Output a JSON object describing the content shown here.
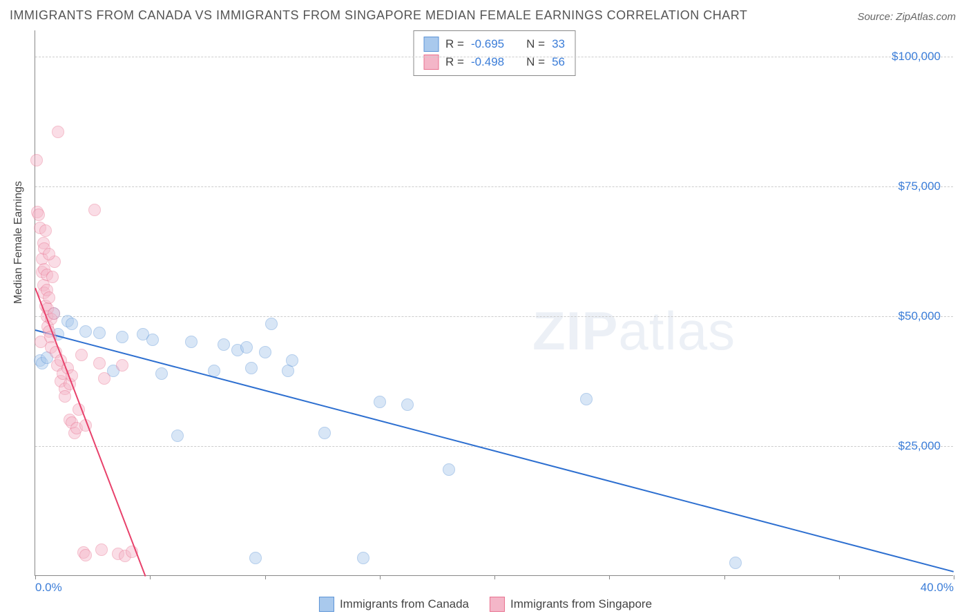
{
  "title": "IMMIGRANTS FROM CANADA VS IMMIGRANTS FROM SINGAPORE MEDIAN FEMALE EARNINGS CORRELATION CHART",
  "source_label": "Source: ZipAtlas.com",
  "y_axis_label": "Median Female Earnings",
  "watermark_bold": "ZIP",
  "watermark_rest": "atlas",
  "chart": {
    "type": "scatter",
    "xlim": [
      0,
      40
    ],
    "ylim": [
      0,
      105000
    ],
    "x_ticks": [
      0,
      5,
      10,
      15,
      20,
      25,
      30,
      35,
      40
    ],
    "x_tick_labels": {
      "0": "0.0%",
      "40": "40.0%"
    },
    "y_gridlines": [
      25000,
      50000,
      75000,
      100000
    ],
    "y_tick_labels": {
      "25000": "$25,000",
      "50000": "$50,000",
      "75000": "$75,000",
      "100000": "$100,000"
    },
    "grid_color": "#cccccc",
    "axis_color": "#888888",
    "tick_label_color": "#3b7dd8",
    "background_color": "#ffffff",
    "marker_radius": 9,
    "marker_opacity": 0.45,
    "series": [
      {
        "name": "Immigrants from Canada",
        "fill_color": "#a9c9ed",
        "stroke_color": "#5b93d6",
        "trend_color": "#2d6fd0",
        "r": -0.695,
        "n": 33,
        "trend": {
          "x1": 0,
          "y1": 47500,
          "x2": 40,
          "y2": 1000
        },
        "points": [
          [
            0.2,
            41500
          ],
          [
            0.3,
            41000
          ],
          [
            0.5,
            42000
          ],
          [
            0.8,
            50500
          ],
          [
            1.0,
            46500
          ],
          [
            1.4,
            49000
          ],
          [
            1.6,
            48500
          ],
          [
            2.2,
            47000
          ],
          [
            2.8,
            46800
          ],
          [
            3.4,
            39500
          ],
          [
            3.8,
            46000
          ],
          [
            4.7,
            46500
          ],
          [
            5.1,
            45500
          ],
          [
            5.5,
            39000
          ],
          [
            6.2,
            27000
          ],
          [
            6.8,
            45000
          ],
          [
            7.8,
            39500
          ],
          [
            8.2,
            44500
          ],
          [
            8.8,
            43500
          ],
          [
            9.2,
            44000
          ],
          [
            9.4,
            40000
          ],
          [
            9.6,
            3500
          ],
          [
            10.0,
            43000
          ],
          [
            10.3,
            48500
          ],
          [
            11.0,
            39500
          ],
          [
            11.2,
            41500
          ],
          [
            12.6,
            27500
          ],
          [
            14.3,
            3500
          ],
          [
            15.0,
            33500
          ],
          [
            16.2,
            33000
          ],
          [
            18.0,
            20500
          ],
          [
            24.0,
            34000
          ],
          [
            30.5,
            2500
          ]
        ]
      },
      {
        "name": "Immigrants from Singapore",
        "fill_color": "#f4b6c8",
        "stroke_color": "#e8718f",
        "trend_color": "#e8416b",
        "r": -0.498,
        "n": 56,
        "trend": {
          "x1": 0,
          "y1": 55500,
          "x2": 4.8,
          "y2": 0
        },
        "points": [
          [
            0.05,
            80000
          ],
          [
            0.1,
            70000
          ],
          [
            0.15,
            69500
          ],
          [
            0.2,
            67000
          ],
          [
            0.25,
            45000
          ],
          [
            0.3,
            58500
          ],
          [
            0.3,
            61000
          ],
          [
            0.35,
            64000
          ],
          [
            0.35,
            56000
          ],
          [
            0.4,
            54500
          ],
          [
            0.4,
            59000
          ],
          [
            0.45,
            52000
          ],
          [
            0.45,
            66500
          ],
          [
            0.5,
            50000
          ],
          [
            0.5,
            55000
          ],
          [
            0.5,
            58000
          ],
          [
            0.55,
            51500
          ],
          [
            0.55,
            48000
          ],
          [
            0.6,
            53500
          ],
          [
            0.6,
            47000
          ],
          [
            0.65,
            46000
          ],
          [
            0.7,
            49500
          ],
          [
            0.7,
            44000
          ],
          [
            0.75,
            57500
          ],
          [
            0.8,
            50500
          ],
          [
            0.85,
            60500
          ],
          [
            0.9,
            43000
          ],
          [
            0.95,
            40500
          ],
          [
            1.0,
            85500
          ],
          [
            1.1,
            41500
          ],
          [
            1.1,
            37500
          ],
          [
            1.2,
            39000
          ],
          [
            1.3,
            36000
          ],
          [
            1.3,
            34500
          ],
          [
            1.4,
            40000
          ],
          [
            1.5,
            37000
          ],
          [
            1.5,
            30000
          ],
          [
            1.6,
            29500
          ],
          [
            1.6,
            38500
          ],
          [
            1.7,
            27500
          ],
          [
            1.8,
            28500
          ],
          [
            1.9,
            32000
          ],
          [
            2.0,
            42500
          ],
          [
            2.1,
            4500
          ],
          [
            2.2,
            4000
          ],
          [
            2.2,
            29000
          ],
          [
            2.6,
            70500
          ],
          [
            2.8,
            41000
          ],
          [
            2.9,
            5000
          ],
          [
            3.0,
            38000
          ],
          [
            3.6,
            4200
          ],
          [
            3.8,
            40500
          ],
          [
            3.9,
            3800
          ],
          [
            4.2,
            4600
          ],
          [
            0.4,
            63000
          ],
          [
            0.6,
            62000
          ]
        ]
      }
    ]
  },
  "stats_box": {
    "r_label": "R =",
    "n_label": "N ="
  },
  "bottom_legend": [
    {
      "label": "Immigrants from Canada",
      "fill": "#a9c9ed",
      "stroke": "#5b93d6"
    },
    {
      "label": "Immigrants from Singapore",
      "fill": "#f4b6c8",
      "stroke": "#e8718f"
    }
  ]
}
